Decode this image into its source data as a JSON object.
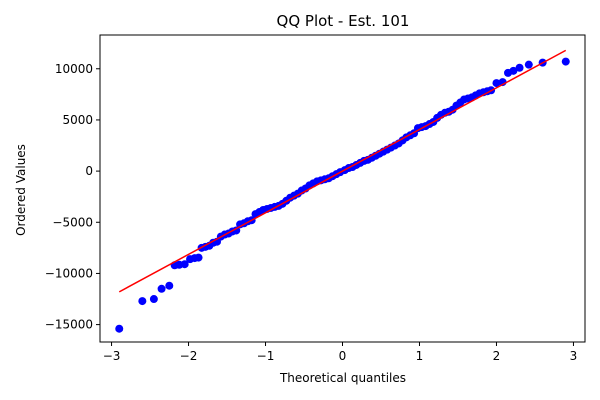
{
  "chart_data": {
    "type": "scatter",
    "title": "QQ Plot - Est. 101",
    "xlabel": "Theoretical quantiles",
    "ylabel": "Ordered Values",
    "xlim": [
      -3.15,
      3.15
    ],
    "ylim": [
      -16700,
      13300
    ],
    "xticks": [
      -3,
      -2,
      -1,
      0,
      1,
      2,
      3
    ],
    "xtick_labels": [
      "−3",
      "−2",
      "−1",
      "0",
      "1",
      "2",
      "3"
    ],
    "yticks": [
      -15000,
      -10000,
      -5000,
      0,
      5000,
      10000
    ],
    "ytick_labels": [
      "−15000",
      "−10000",
      "−5000",
      "0",
      "5000",
      "10000"
    ],
    "grid": false,
    "marker_color": "#0000ff",
    "line_color": "#ff0000",
    "fit_line": {
      "x": [
        -2.9,
        2.9
      ],
      "y": [
        -11800,
        11800
      ]
    },
    "series": [
      {
        "points": [
          [
            -2.9,
            -15400
          ],
          [
            -2.6,
            -12700
          ],
          [
            -2.45,
            -12500
          ],
          [
            -2.35,
            -11500
          ],
          [
            -2.25,
            -11200
          ],
          [
            -2.18,
            -9200
          ],
          [
            -2.12,
            -9150
          ],
          [
            -2.05,
            -9100
          ],
          [
            -1.98,
            -8600
          ],
          [
            -1.92,
            -8500
          ],
          [
            -1.87,
            -8450
          ],
          [
            -1.83,
            -7500
          ],
          [
            -1.78,
            -7400
          ],
          [
            -1.73,
            -7300
          ],
          [
            -1.68,
            -7000
          ],
          [
            -1.63,
            -6900
          ],
          [
            -1.58,
            -6400
          ],
          [
            -1.53,
            -6200
          ],
          [
            -1.48,
            -6100
          ],
          [
            -1.43,
            -5900
          ],
          [
            -1.38,
            -5800
          ],
          [
            -1.33,
            -5200
          ],
          [
            -1.28,
            -5100
          ],
          [
            -1.23,
            -4900
          ],
          [
            -1.18,
            -4800
          ],
          [
            -1.13,
            -4200
          ],
          [
            -1.08,
            -4000
          ],
          [
            -1.03,
            -3800
          ],
          [
            -0.98,
            -3700
          ],
          [
            -0.93,
            -3600
          ],
          [
            -0.88,
            -3500
          ],
          [
            -0.83,
            -3400
          ],
          [
            -0.78,
            -3200
          ],
          [
            -0.73,
            -2900
          ],
          [
            -0.68,
            -2600
          ],
          [
            -0.63,
            -2400
          ],
          [
            -0.58,
            -2200
          ],
          [
            -0.53,
            -1900
          ],
          [
            -0.48,
            -1700
          ],
          [
            -0.43,
            -1400
          ],
          [
            -0.38,
            -1200
          ],
          [
            -0.33,
            -1000
          ],
          [
            -0.28,
            -900
          ],
          [
            -0.23,
            -800
          ],
          [
            -0.18,
            -700
          ],
          [
            -0.13,
            -500
          ],
          [
            -0.08,
            -300
          ],
          [
            -0.03,
            -100
          ],
          [
            0.03,
            100
          ],
          [
            0.08,
            300
          ],
          [
            0.13,
            400
          ],
          [
            0.18,
            600
          ],
          [
            0.23,
            800
          ],
          [
            0.28,
            1000
          ],
          [
            0.33,
            1100
          ],
          [
            0.38,
            1300
          ],
          [
            0.43,
            1500
          ],
          [
            0.48,
            1700
          ],
          [
            0.53,
            1900
          ],
          [
            0.58,
            2100
          ],
          [
            0.63,
            2300
          ],
          [
            0.68,
            2500
          ],
          [
            0.73,
            2700
          ],
          [
            0.78,
            3000
          ],
          [
            0.83,
            3300
          ],
          [
            0.88,
            3500
          ],
          [
            0.93,
            3700
          ],
          [
            0.98,
            4200
          ],
          [
            1.03,
            4300
          ],
          [
            1.08,
            4400
          ],
          [
            1.13,
            4600
          ],
          [
            1.18,
            4800
          ],
          [
            1.23,
            5200
          ],
          [
            1.28,
            5500
          ],
          [
            1.33,
            5700
          ],
          [
            1.38,
            5800
          ],
          [
            1.43,
            6000
          ],
          [
            1.48,
            6400
          ],
          [
            1.53,
            6700
          ],
          [
            1.58,
            7000
          ],
          [
            1.63,
            7100
          ],
          [
            1.68,
            7200
          ],
          [
            1.73,
            7400
          ],
          [
            1.78,
            7600
          ],
          [
            1.83,
            7700
          ],
          [
            1.88,
            7800
          ],
          [
            1.93,
            7900
          ],
          [
            2.0,
            8600
          ],
          [
            2.08,
            8700
          ],
          [
            2.15,
            9600
          ],
          [
            2.22,
            9800
          ],
          [
            2.3,
            10100
          ],
          [
            2.42,
            10400
          ],
          [
            2.6,
            10600
          ],
          [
            2.9,
            10700
          ]
        ]
      }
    ]
  }
}
